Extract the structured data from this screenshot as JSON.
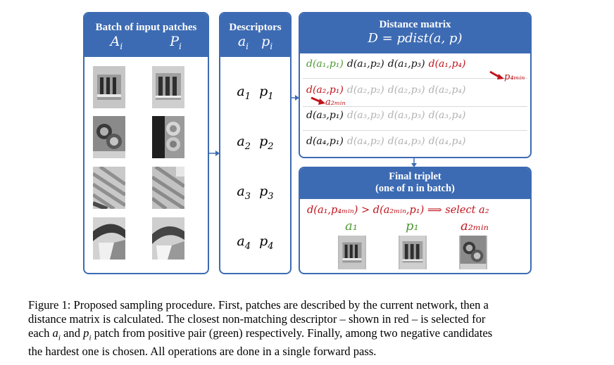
{
  "batch_panel": {
    "title": "Batch of input patches",
    "col_a": "A",
    "col_a_sub": "i",
    "col_p": "P",
    "col_p_sub": "i"
  },
  "descriptors_panel": {
    "title": "Descriptors",
    "col_a": "a",
    "col_a_sub": "i",
    "col_p": "p",
    "col_p_sub": "i",
    "rows": [
      {
        "a": "a",
        "p": "p",
        "idx": "1"
      },
      {
        "a": "a",
        "p": "p",
        "idx": "2"
      },
      {
        "a": "a",
        "p": "p",
        "idx": "3"
      },
      {
        "a": "a",
        "p": "p",
        "idx": "4"
      }
    ]
  },
  "distance_panel": {
    "title": "Distance matrix",
    "formula": "D = pdist(a, p)",
    "rows": [
      [
        "d(a₁,p₁)",
        "d(a₁,p₂)",
        "d(a₁,p₃)",
        "d(a₁,p₄)"
      ],
      [
        "d(a₂,p₁)",
        "d(a₂,p₂)",
        "d(a₂,p₃)",
        "d(a₂,p₄)"
      ],
      [
        "d(a₃,p₁)",
        "d(a₃,p₂)",
        "d(a₃,p₃)",
        "d(a₃,p₄)"
      ],
      [
        "d(a₄,p₁)",
        "d(a₄,p₂)",
        "d(a₄,p₃)",
        "d(a₄,p₄)"
      ]
    ],
    "p4min_label": "p₄ₘᵢₙ",
    "a2min_label": "a₂ₘᵢₙ"
  },
  "final_panel": {
    "title_line1": "Final triplet",
    "title_line2": "(one of n in batch)",
    "condition": "d(a₁,p₄ₘᵢₙ) > d(a₂ₘᵢₙ,p₁) ⟹ select a₂",
    "label_a1": "a₁",
    "label_p1": "p₁",
    "label_a2min": "a₂ₘᵢₙ"
  },
  "caption": {
    "line1": "Figure 1: Proposed sampling procedure. First, patches are described by the current network, then a",
    "line2": "distance matrix is calculated. The closest non-matching descriptor – shown in red – is selected for",
    "line3_pre": "each ",
    "line3_ai": "a",
    "line3_ai_sub": "i",
    "line3_mid": " and ",
    "line3_pi": "p",
    "line3_pi_sub": "i",
    "line3_post": " patch from positive pair (green) respectively. Finally, among two negative candidates",
    "line4": "the hardest one is chosen. All operations are done in a single forward pass."
  },
  "colors": {
    "panel_blue": "#3d6bb3",
    "positive_green": "#4f9a35",
    "negative_red": "#c0141c",
    "masked_gray": "#b2b2b2"
  }
}
